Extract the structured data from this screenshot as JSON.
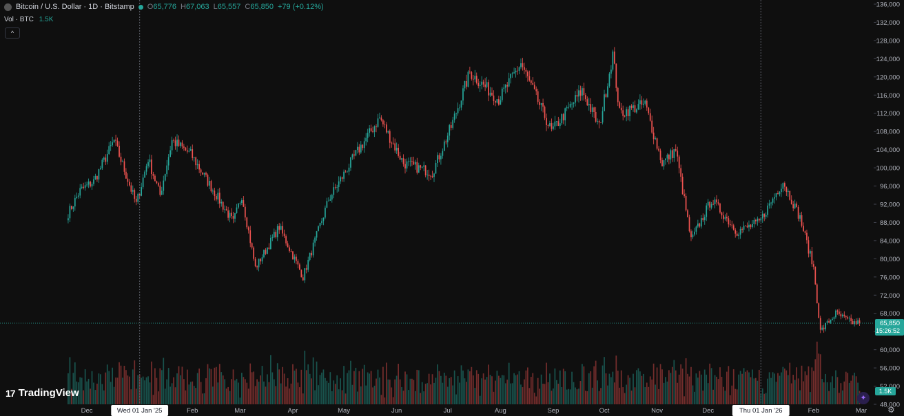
{
  "legend": {
    "symbol": "Bitcoin / U.S. Dollar · 1D · Bitstamp",
    "o_label": "O",
    "o": "65,776",
    "h_label": "H",
    "h": "67,063",
    "l_label": "L",
    "l": "65,557",
    "c_label": "C",
    "c": "65,850",
    "change": "+79 (+0.12%)"
  },
  "volume": {
    "label": "Vol · BTC",
    "value": "1.5K"
  },
  "logo": "TradingView",
  "colors": {
    "up": "#26a69a",
    "down": "#ef5350",
    "bg": "#0f0f0f",
    "text": "#d1d4dc",
    "axis_text": "#b2b5be"
  },
  "icons": [
    "collapse-chevron-icon",
    "settings-gear-icon",
    "magic-wand-icon",
    "tradingview-logo-icon"
  ],
  "chart_data": {
    "type": "candlestick",
    "title": "Bitcoin / U.S. Dollar · 1D · Bitstamp",
    "y_axis_side": "right",
    "ylim": [
      48000,
      136000
    ],
    "y_ticks": [
      48000,
      52000,
      56000,
      60000,
      64000,
      68000,
      72000,
      76000,
      80000,
      84000,
      88000,
      92000,
      96000,
      100000,
      104000,
      108000,
      112000,
      116000,
      120000,
      124000,
      128000,
      132000,
      136000
    ],
    "y_tick_labels": [
      "48,000",
      "52,000",
      "56,000",
      "60,000",
      "64,000",
      "68,000",
      "72,000",
      "76,000",
      "80,000",
      "84,000",
      "88,000",
      "92,000",
      "96,000",
      "100,000",
      "104,000",
      "108,000",
      "112,000",
      "116,000",
      "120,000",
      "124,000",
      "128,000",
      "132,000",
      "136,000"
    ],
    "x_tick_labels": [
      "Dec",
      "Wed 01 Jan '25",
      "Feb",
      "Mar",
      "Apr",
      "May",
      "Jun",
      "Jul",
      "Aug",
      "Sep",
      "Oct",
      "Nov",
      "Dec",
      "Thu 01 Jan '26",
      "Feb",
      "Mar"
    ],
    "x_tick_dates": [
      "2024-12-01",
      "2025-01-01",
      "2025-02-01",
      "2025-03-01",
      "2025-04-01",
      "2025-05-01",
      "2025-06-01",
      "2025-07-01",
      "2025-08-01",
      "2025-09-01",
      "2025-10-01",
      "2025-11-01",
      "2025-12-01",
      "2026-01-01",
      "2026-02-01",
      "2026-03-01"
    ],
    "highlighted_x_labels": [
      "Wed 01 Jan '25",
      "Thu 01 Jan '26"
    ],
    "vertical_markers": [
      "2025-01-01",
      "2026-01-01"
    ],
    "date_range": [
      "2024-11-20",
      "2026-02-28"
    ],
    "close_path": [
      [
        "2024-11-20",
        90000
      ],
      [
        "2024-11-27",
        95000
      ],
      [
        "2024-12-05",
        97000
      ],
      [
        "2024-12-17",
        106000
      ],
      [
        "2024-12-30",
        92000
      ],
      [
        "2025-01-06",
        102000
      ],
      [
        "2025-01-13",
        94000
      ],
      [
        "2025-01-20",
        106000
      ],
      [
        "2025-01-31",
        103000
      ],
      [
        "2025-02-10",
        97000
      ],
      [
        "2025-02-25",
        88000
      ],
      [
        "2025-03-02",
        94000
      ],
      [
        "2025-03-10",
        78000
      ],
      [
        "2025-03-24",
        87000
      ],
      [
        "2025-04-07",
        76000
      ],
      [
        "2025-04-22",
        93000
      ],
      [
        "2025-05-08",
        103000
      ],
      [
        "2025-05-22",
        111000
      ],
      [
        "2025-06-05",
        101000
      ],
      [
        "2025-06-22",
        99000
      ],
      [
        "2025-07-03",
        109000
      ],
      [
        "2025-07-14",
        121000
      ],
      [
        "2025-07-31",
        115000
      ],
      [
        "2025-08-13",
        123000
      ],
      [
        "2025-08-31",
        108000
      ],
      [
        "2025-09-18",
        117000
      ],
      [
        "2025-09-28",
        109000
      ],
      [
        "2025-10-06",
        125000
      ],
      [
        "2025-10-10",
        112000
      ],
      [
        "2025-10-25",
        114000
      ],
      [
        "2025-11-04",
        101000
      ],
      [
        "2025-11-12",
        104000
      ],
      [
        "2025-11-21",
        84000
      ],
      [
        "2025-12-03",
        93000
      ],
      [
        "2025-12-18",
        86000
      ],
      [
        "2025-12-31",
        88000
      ],
      [
        "2026-01-14",
        97000
      ],
      [
        "2026-01-24",
        89000
      ],
      [
        "2026-02-01",
        78000
      ],
      [
        "2026-02-05",
        64000
      ],
      [
        "2026-02-14",
        68000
      ],
      [
        "2026-02-23",
        66000
      ],
      [
        "2026-02-28",
        65850
      ]
    ],
    "last_price": "65,850",
    "last_price_value": 65850,
    "countdown": "15:26:52",
    "volume_last": "1.5K"
  }
}
